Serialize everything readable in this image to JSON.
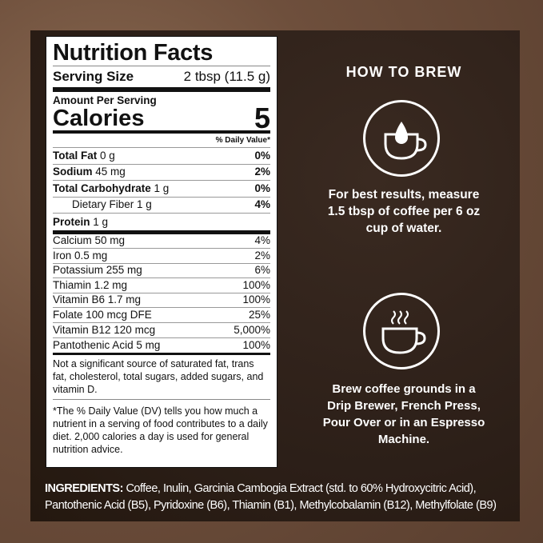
{
  "label": {
    "title": "Nutrition Facts",
    "serving_size_label": "Serving Size",
    "serving_size_value": "2 tbsp (11.5 g)",
    "amount_per_serving": "Amount Per Serving",
    "calories_label": "Calories",
    "calories_value": "5",
    "daily_value_header": "% Daily Value*",
    "nutrients": [
      {
        "name": "Total Fat",
        "amount": "0 g",
        "dv": "0%"
      },
      {
        "name": "Sodium",
        "amount": "45 mg",
        "dv": "2%"
      },
      {
        "name": "Total Carbohydrate",
        "amount": "1 g",
        "dv": "0%"
      },
      {
        "name": "Dietary Fiber",
        "amount": "1 g",
        "dv": "4%"
      },
      {
        "name": "Protein",
        "amount": "1 g",
        "dv": ""
      }
    ],
    "micronutrients": [
      {
        "text": "Calcium 50 mg",
        "dv": "4%"
      },
      {
        "text": "Iron 0.5 mg",
        "dv": "2%"
      },
      {
        "text": "Potassium 255 mg",
        "dv": "6%"
      },
      {
        "text": "Thiamin 1.2 mg",
        "dv": "100%"
      },
      {
        "text": "Vitamin B6 1.7 mg",
        "dv": "100%"
      },
      {
        "text": "Folate 100 mcg DFE",
        "dv": "25%"
      },
      {
        "text": "Vitamin B12 120 mcg",
        "dv": "5,000%"
      },
      {
        "text": "Pantothenic Acid 5 mg",
        "dv": "100%"
      }
    ],
    "not_significant": "Not a significant source of saturated fat, trans fat, cholesterol, total sugars, added sugars, and vitamin D.",
    "dv_footnote": "*The % Daily Value (DV) tells you how much a nutrient in a serving of food contributes to a daily diet. 2,000 calories a day is used for general nutrition advice."
  },
  "brew": {
    "heading": "HOW TO BREW",
    "step1_icon": "drop-into-cup-icon",
    "step1_text": "For best results, measure 1.5 tbsp of coffee per 6 oz cup of water.",
    "step2_icon": "steaming-cup-icon",
    "step2_text": "Brew coffee grounds in a Drip Brewer, French Press, Pour Over or in an Espresso Machine."
  },
  "ingredients": {
    "label": "INGREDIENTS:",
    "text": " Coffee, Inulin, Garcinia Cambogia Extract (std. to 60% Hydroxycitric Acid), Pantothenic Acid (B5), Pyridoxine (B6), Thiamin (B1), Methylcobalamin (B12), Methylfolate (B9)"
  },
  "colors": {
    "panel": "#2c1f18",
    "background": "#6e4f3c",
    "text": "#ffffff"
  }
}
